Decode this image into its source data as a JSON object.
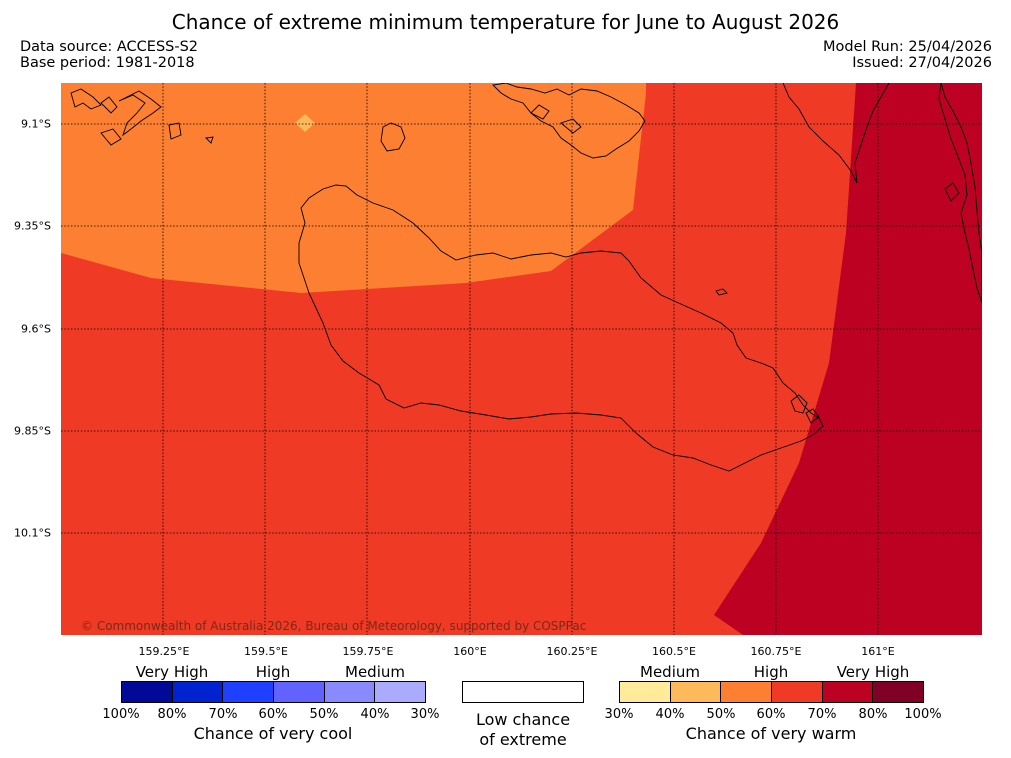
{
  "title": "Chance of extreme minimum temperature for June to August 2026",
  "meta": {
    "data_source": "Data source: ACCESS-S2",
    "base_period": "Base period: 1981-2018",
    "model_run": "Model Run: 25/04/2026",
    "issued": "Issued: 27/04/2026"
  },
  "map": {
    "lon_labels": [
      "159.25°E",
      "159.5°E",
      "159.75°E",
      "160°E",
      "160.25°E",
      "160.5°E",
      "160.75°E",
      "161°E"
    ],
    "lat_labels": [
      "9.1°S",
      "9.35°S",
      "9.6°S",
      "9.85°S",
      "10.1°S"
    ],
    "copyright": "© Commonwealth of Australia 2026, Bureau of Meteorology, supported by COSPPac",
    "zone_colors": {
      "medium_50_60": "#fd7f31",
      "high_60_70": "#ef3a25",
      "very_high_70_80": "#bd0123",
      "spot_40_50": "#fdb95a"
    }
  },
  "legend": {
    "cool": {
      "categories": [
        "Very High",
        "High",
        "Medium"
      ],
      "percents": [
        "100%",
        "80%",
        "70%",
        "60%",
        "50%",
        "40%",
        "30%"
      ],
      "colors": [
        "#000a96",
        "#0022cf",
        "#2040ff",
        "#6262ff",
        "#8a8aff",
        "#aaaaff"
      ],
      "caption": "Chance of very cool"
    },
    "low": {
      "line1": "Low chance",
      "line2": "of extreme"
    },
    "warm": {
      "categories": [
        "Medium",
        "High",
        "Very High"
      ],
      "percents": [
        "30%",
        "40%",
        "50%",
        "60%",
        "70%",
        "80%",
        "100%"
      ],
      "colors": [
        "#ffeb99",
        "#fdb95a",
        "#fd7f31",
        "#ef3a25",
        "#bd0123",
        "#800026"
      ],
      "caption": "Chance of very warm"
    }
  }
}
